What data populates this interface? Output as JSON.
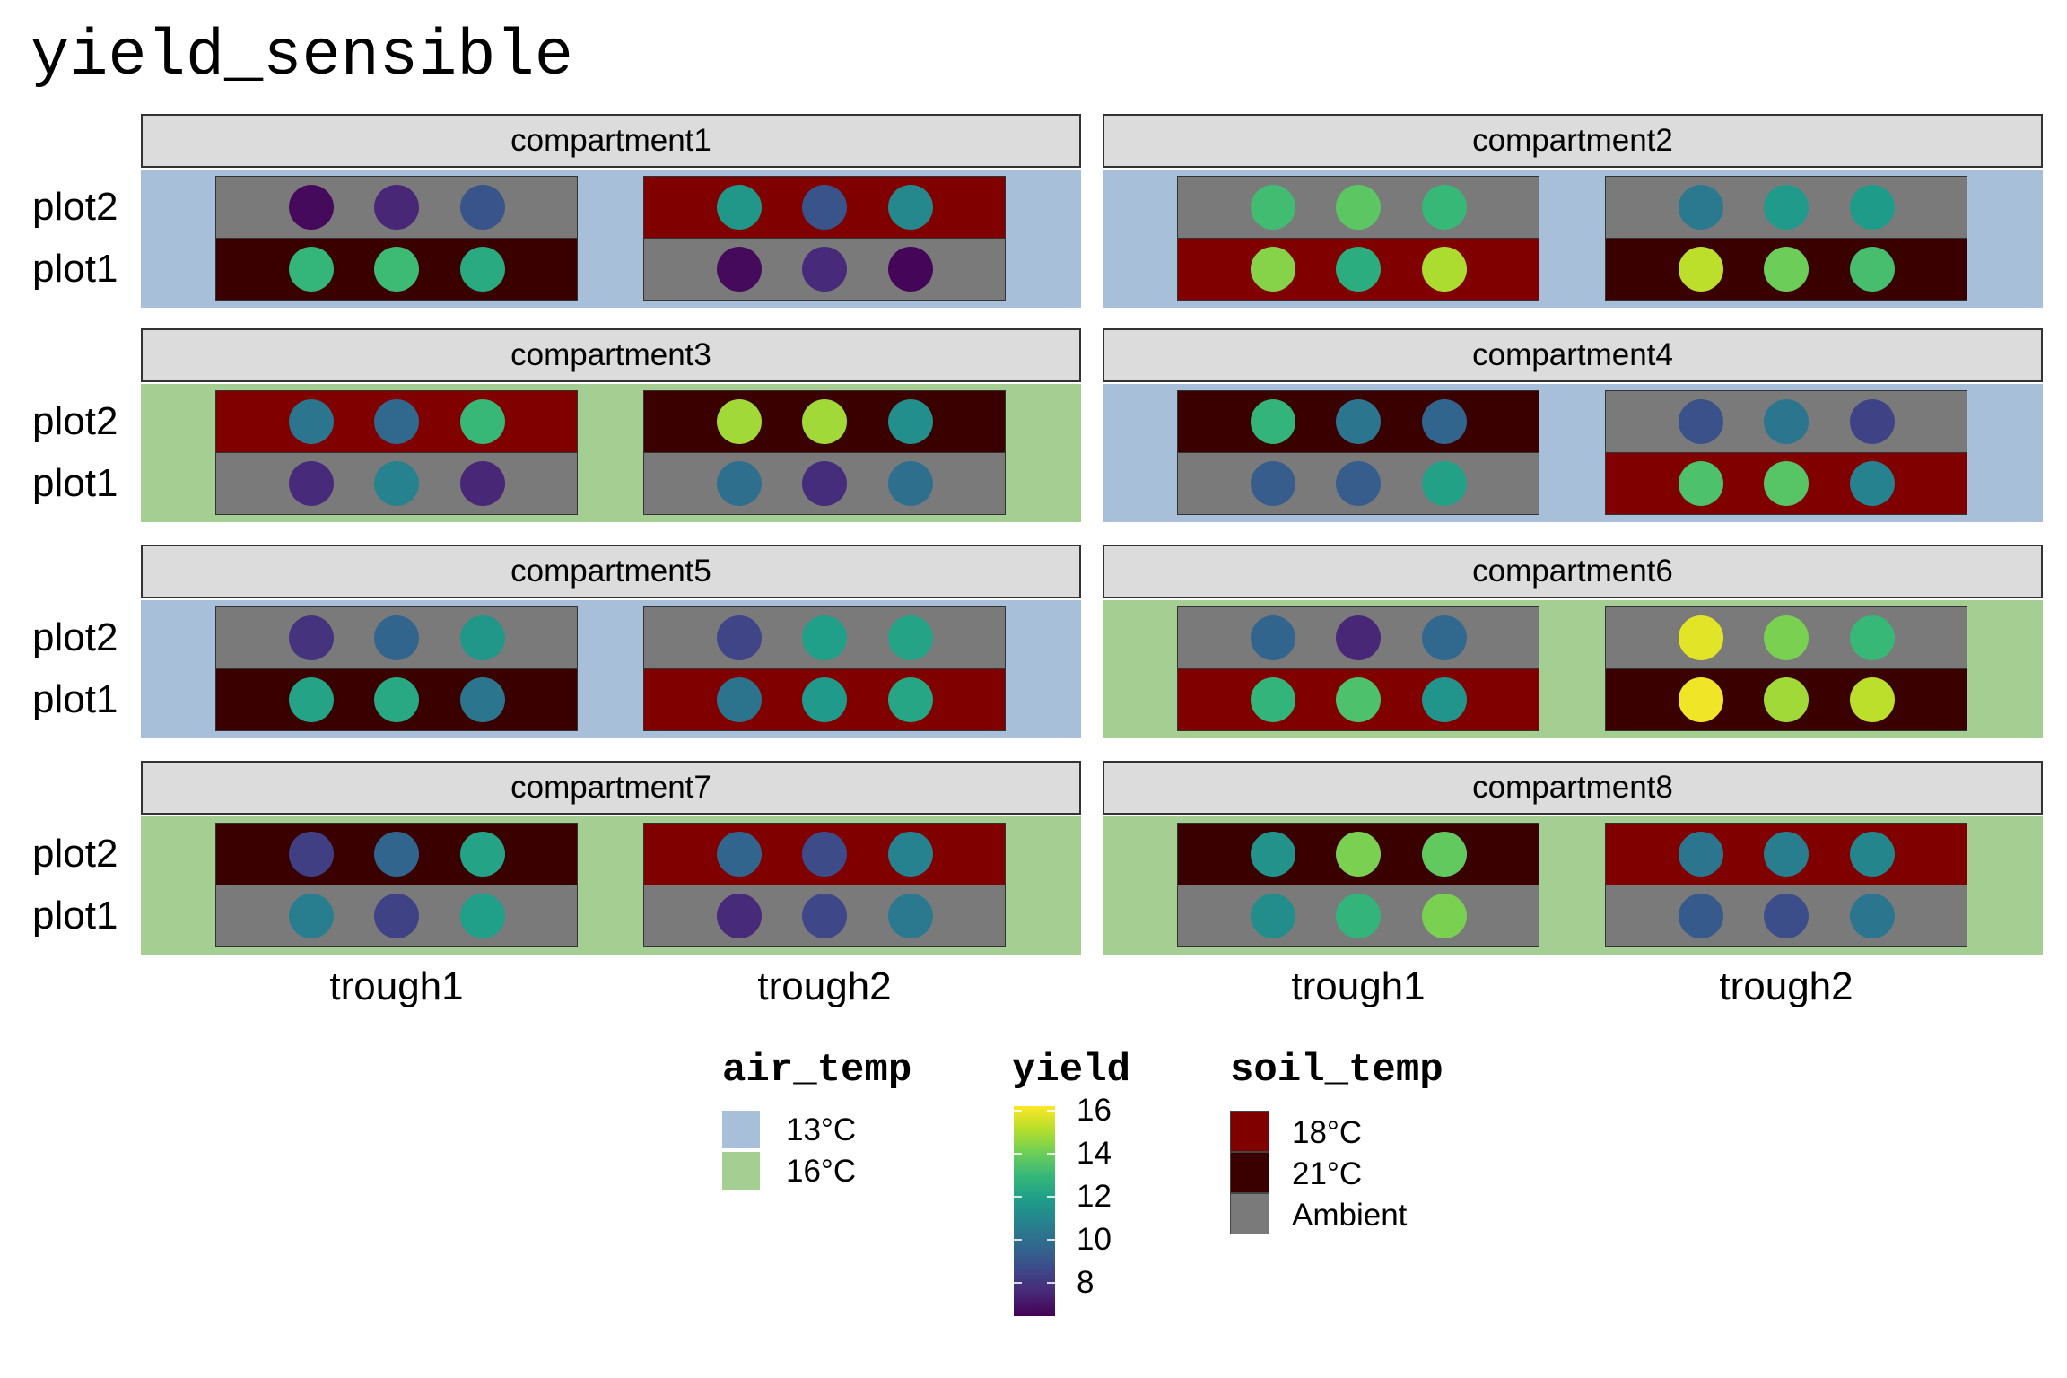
{
  "chart_data": {
    "type": "heatmap",
    "title": "yield_sensible",
    "facet_var": "compartment",
    "x_categories": [
      "trough1",
      "trough2"
    ],
    "y_categories": [
      "plot1",
      "plot2"
    ],
    "fill_scales": {
      "air_temp": {
        "title": "air_temp",
        "levels": [
          {
            "label": "13°C",
            "color": "#a7bfd8"
          },
          {
            "label": "16°C",
            "color": "#a5cf92"
          }
        ]
      },
      "soil_temp": {
        "title": "soil_temp",
        "levels": [
          {
            "label": "18°C",
            "color": "#800000"
          },
          {
            "label": "21°C",
            "color": "#3a0000"
          },
          {
            "label": "Ambient",
            "color": "#7a7a7a"
          }
        ]
      },
      "yield": {
        "title": "yield",
        "palette": "viridis",
        "range": [
          6.45,
          16.2
        ],
        "ticks": [
          "16",
          "14",
          "12",
          "10",
          "8"
        ]
      }
    },
    "compartments": [
      {
        "name": "compartment1",
        "air_temp": "13°C",
        "cells": [
          {
            "trough": "trough1",
            "plot": "plot2",
            "soil_temp": "Ambient",
            "yield": [
              6.7,
              7.5,
              9.0
            ]
          },
          {
            "trough": "trough1",
            "plot": "plot1",
            "soil_temp": "21°C",
            "yield": [
              12.9,
              13.1,
              12.4
            ]
          },
          {
            "trough": "trough2",
            "plot": "plot2",
            "soil_temp": "18°C",
            "yield": [
              11.6,
              9.0,
              11.0
            ]
          },
          {
            "trough": "trough2",
            "plot": "plot1",
            "soil_temp": "Ambient",
            "yield": [
              6.7,
              7.6,
              6.6
            ]
          }
        ]
      },
      {
        "name": "compartment2",
        "air_temp": "13°C",
        "cells": [
          {
            "trough": "trough1",
            "plot": "plot2",
            "soil_temp": "Ambient",
            "yield": [
              13.2,
              13.7,
              13.0
            ]
          },
          {
            "trough": "trough1",
            "plot": "plot1",
            "soil_temp": "18°C",
            "yield": [
              14.4,
              12.5,
              15.0
            ]
          },
          {
            "trough": "trough2",
            "plot": "plot2",
            "soil_temp": "Ambient",
            "yield": [
              10.4,
              11.7,
              11.8
            ]
          },
          {
            "trough": "trough2",
            "plot": "plot1",
            "soil_temp": "21°C",
            "yield": [
              15.2,
              14.0,
              13.3
            ]
          }
        ]
      },
      {
        "name": "compartment3",
        "air_temp": "16°C",
        "cells": [
          {
            "trough": "trough1",
            "plot": "plot2",
            "soil_temp": "18°C",
            "yield": [
              10.3,
              9.7,
              13.0
            ]
          },
          {
            "trough": "trough1",
            "plot": "plot1",
            "soil_temp": "Ambient",
            "yield": [
              7.6,
              10.8,
              7.5
            ]
          },
          {
            "trough": "trough2",
            "plot": "plot2",
            "soil_temp": "21°C",
            "yield": [
              14.8,
              14.8,
              11.3
            ]
          },
          {
            "trough": "trough2",
            "plot": "plot1",
            "soil_temp": "Ambient",
            "yield": [
              10.0,
              7.7,
              10.0
            ]
          }
        ]
      },
      {
        "name": "compartment4",
        "air_temp": "13°C",
        "cells": [
          {
            "trough": "trough1",
            "plot": "plot2",
            "soil_temp": "21°C",
            "yield": [
              12.8,
              10.3,
              9.6
            ]
          },
          {
            "trough": "trough1",
            "plot": "plot1",
            "soil_temp": "Ambient",
            "yield": [
              9.3,
              9.3,
              12.0
            ]
          },
          {
            "trough": "trough2",
            "plot": "plot2",
            "soil_temp": "Ambient",
            "yield": [
              8.9,
              10.3,
              8.4
            ]
          },
          {
            "trough": "trough2",
            "plot": "plot1",
            "soil_temp": "18°C",
            "yield": [
              13.4,
              13.6,
              10.8
            ]
          }
        ]
      },
      {
        "name": "compartment5",
        "air_temp": "13°C",
        "cells": [
          {
            "trough": "trough1",
            "plot": "plot2",
            "soil_temp": "Ambient",
            "yield": [
              7.9,
              9.6,
              11.6
            ]
          },
          {
            "trough": "trough1",
            "plot": "plot1",
            "soil_temp": "21°C",
            "yield": [
              12.1,
              12.3,
              10.3
            ]
          },
          {
            "trough": "trough2",
            "plot": "plot2",
            "soil_temp": "Ambient",
            "yield": [
              8.5,
              11.9,
              12.1
            ]
          },
          {
            "trough": "trough2",
            "plot": "plot1",
            "soil_temp": "18°C",
            "yield": [
              10.2,
              11.7,
              12.2
            ]
          }
        ]
      },
      {
        "name": "compartment6",
        "air_temp": "16°C",
        "cells": [
          {
            "trough": "trough1",
            "plot": "plot2",
            "soil_temp": "Ambient",
            "yield": [
              9.6,
              7.5,
              9.7
            ]
          },
          {
            "trough": "trough1",
            "plot": "plot1",
            "soil_temp": "18°C",
            "yield": [
              12.8,
              13.4,
              11.5
            ]
          },
          {
            "trough": "trough2",
            "plot": "plot2",
            "soil_temp": "Ambient",
            "yield": [
              15.8,
              14.2,
              13.0
            ]
          },
          {
            "trough": "trough2",
            "plot": "plot1",
            "soil_temp": "21°C",
            "yield": [
              16.0,
              14.8,
              15.2
            ]
          }
        ]
      },
      {
        "name": "compartment7",
        "air_temp": "16°C",
        "cells": [
          {
            "trough": "trough1",
            "plot": "plot2",
            "soil_temp": "21°C",
            "yield": [
              8.3,
              9.6,
              12.1
            ]
          },
          {
            "trough": "trough1",
            "plot": "plot1",
            "soil_temp": "Ambient",
            "yield": [
              10.6,
              8.4,
              11.9
            ]
          },
          {
            "trough": "trough2",
            "plot": "plot2",
            "soil_temp": "18°C",
            "yield": [
              9.6,
              8.7,
              10.8
            ]
          },
          {
            "trough": "trough2",
            "plot": "plot1",
            "soil_temp": "Ambient",
            "yield": [
              7.6,
              8.6,
              10.4
            ]
          }
        ]
      },
      {
        "name": "compartment8",
        "air_temp": "16°C",
        "cells": [
          {
            "trough": "trough1",
            "plot": "plot2",
            "soil_temp": "21°C",
            "yield": [
              11.4,
              14.2,
              13.8
            ]
          },
          {
            "trough": "trough1",
            "plot": "plot1",
            "soil_temp": "Ambient",
            "yield": [
              11.2,
              12.8,
              14.2
            ]
          },
          {
            "trough": "trough2",
            "plot": "plot2",
            "soil_temp": "18°C",
            "yield": [
              10.3,
              10.6,
              10.9
            ]
          },
          {
            "trough": "trough2",
            "plot": "plot1",
            "soil_temp": "Ambient",
            "yield": [
              9.2,
              8.8,
              10.3
            ]
          }
        ]
      }
    ]
  }
}
